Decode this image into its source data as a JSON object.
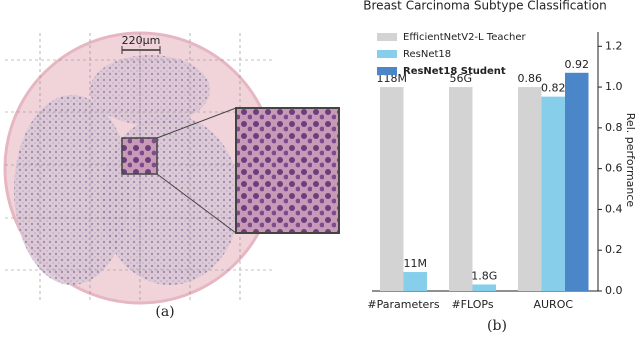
{
  "figure": {
    "scale_bar": "220μm",
    "caption_a": "(a)"
  },
  "chart_data": {
    "type": "bar",
    "title": "Breast Carcinoma Subtype Classification",
    "caption": "(b)",
    "ylabel": "Rel. performance",
    "categories": [
      "#Parameters",
      "#FLOPs",
      "AUROC"
    ],
    "series": [
      {
        "name": "EfficientNetV2-L Teacher",
        "color": "#d3d3d3",
        "values": [
          1.0,
          1.0,
          1.0
        ],
        "value_labels": [
          "118M",
          "56G",
          "0.86"
        ]
      },
      {
        "name": "ResNet18",
        "color": "#87ceeb",
        "values": [
          0.093,
          0.032,
          0.953
        ],
        "value_labels": [
          "11M",
          "1.8G",
          "0.82"
        ]
      },
      {
        "name": "ResNet18 Student",
        "color": "#4a86c8",
        "values": [
          null,
          null,
          1.07
        ],
        "value_labels": [
          null,
          null,
          "0.92"
        ]
      }
    ],
    "ylim": [
      0,
      1.27
    ],
    "yticks": [
      {
        "value": 0,
        "label": "0.0"
      },
      0.2,
      0.4,
      0.6,
      0.8,
      {
        "value": 1,
        "label": "1.0"
      },
      1.2
    ]
  }
}
